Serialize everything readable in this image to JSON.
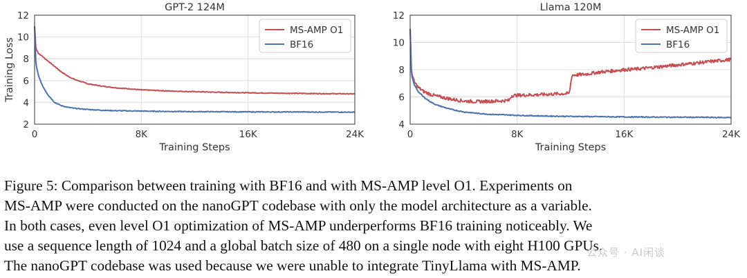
{
  "chart_data": [
    {
      "type": "line",
      "title": "GPT-2 124M",
      "xlabel": "Training Steps",
      "ylabel": "Training Loss",
      "xlim": [
        0,
        24000
      ],
      "ylim": [
        2,
        12
      ],
      "xticks": [
        0,
        8000,
        16000,
        24000
      ],
      "xtick_labels": [
        "0",
        "8K",
        "16K",
        "24K"
      ],
      "yticks": [
        2,
        4,
        6,
        8,
        10,
        12
      ],
      "ytick_labels": [
        "2",
        "4",
        "6",
        "8",
        "10",
        "12"
      ],
      "grid": true,
      "legend": "top-right",
      "series": [
        {
          "name": "MS-AMP O1",
          "color": "#c44e52",
          "x": [
            0,
            100,
            300,
            600,
            1000,
            1500,
            2000,
            2500,
            3000,
            4000,
            5000,
            6000,
            8000,
            10000,
            12000,
            14000,
            16000,
            18000,
            20000,
            22000,
            24000
          ],
          "y": [
            11.0,
            8.9,
            8.5,
            8.2,
            7.8,
            7.3,
            6.8,
            6.4,
            6.1,
            5.7,
            5.5,
            5.35,
            5.15,
            5.05,
            4.98,
            4.92,
            4.88,
            4.85,
            4.82,
            4.8,
            4.78
          ]
        },
        {
          "name": "BF16",
          "color": "#4c72b0",
          "x": [
            0,
            100,
            300,
            600,
            1000,
            1500,
            2000,
            2500,
            3000,
            4000,
            5000,
            6000,
            8000,
            10000,
            12000,
            14000,
            16000,
            18000,
            20000,
            22000,
            24000
          ],
          "y": [
            11.0,
            7.5,
            6.4,
            5.5,
            4.7,
            4.0,
            3.7,
            3.55,
            3.45,
            3.35,
            3.28,
            3.24,
            3.2,
            3.17,
            3.15,
            3.14,
            3.13,
            3.12,
            3.12,
            3.11,
            3.1
          ]
        }
      ]
    },
    {
      "type": "line",
      "title": "Llama 120M",
      "xlabel": "Training Steps",
      "ylabel": "",
      "xlim": [
        0,
        24000
      ],
      "ylim": [
        4,
        12
      ],
      "xticks": [
        0,
        8000,
        16000,
        24000
      ],
      "xtick_labels": [
        "0",
        "8K",
        "16K",
        "24K"
      ],
      "yticks": [
        4,
        6,
        8,
        10,
        12
      ],
      "ytick_labels": [
        "4",
        "6",
        "8",
        "10",
        "12"
      ],
      "grid": true,
      "legend": "top-right",
      "series": [
        {
          "name": "MS-AMP O1",
          "color": "#c44e52",
          "x": [
            0,
            100,
            300,
            600,
            1000,
            1500,
            2000,
            3000,
            4000,
            5000,
            6000,
            7000,
            7400,
            7600,
            9000,
            10000,
            11000,
            11900,
            12100,
            13000,
            14000,
            15000,
            16000,
            17000,
            18000,
            19000,
            20000,
            21000,
            22000,
            23000,
            24000
          ],
          "y": [
            11.0,
            7.8,
            7.1,
            6.7,
            6.4,
            6.2,
            6.05,
            5.85,
            5.7,
            5.65,
            5.68,
            5.72,
            5.75,
            6.1,
            6.15,
            6.18,
            6.22,
            6.25,
            7.6,
            7.65,
            7.8,
            7.9,
            8.0,
            8.05,
            8.15,
            8.25,
            8.35,
            8.45,
            8.55,
            8.65,
            8.75
          ]
        },
        {
          "name": "BF16",
          "color": "#4c72b0",
          "x": [
            0,
            100,
            300,
            600,
            1000,
            1500,
            2000,
            3000,
            4000,
            5000,
            6000,
            8000,
            10000,
            12000,
            14000,
            16000,
            18000,
            20000,
            22000,
            24000
          ],
          "y": [
            11.0,
            7.6,
            6.9,
            6.4,
            6.0,
            5.65,
            5.4,
            5.1,
            4.9,
            4.8,
            4.72,
            4.65,
            4.6,
            4.57,
            4.55,
            4.53,
            4.52,
            4.51,
            4.5,
            4.48
          ]
        }
      ]
    }
  ],
  "caption": {
    "lines": [
      "Figure 5: Comparison between training with BF16 and with MS-AMP level O1. Experiments on",
      "MS-AMP were conducted on the nanoGPT codebase with only the model architecture as a variable.",
      "In both cases, even level O1 optimization of MS-AMP underperforms BF16 training noticeably. We",
      "use a sequence length of 1024 and a global batch size of 480 on a single node with eight H100 GPUs.",
      "The nanoGPT codebase was used because we were unable to integrate TinyLlama with MS-AMP."
    ]
  },
  "watermark": "公众号 · AI闲谈"
}
